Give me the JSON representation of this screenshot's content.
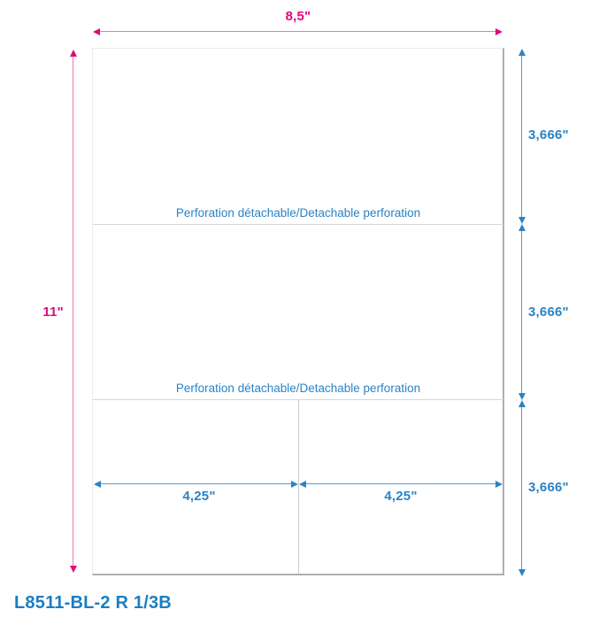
{
  "title": {
    "product_code": "L8511-BL-2 R 1/3B"
  },
  "sheet": {
    "width_label": "8,5\"",
    "height_label": "11\"",
    "perforation_labels": [
      "Perforation détachable/Detachable perforation",
      "Perforation détachable/Detachable perforation"
    ],
    "section_labels": [
      "3,666\"",
      "3,666\"",
      "3,666\""
    ],
    "half_width_labels": [
      "4,25\"",
      "4,25\""
    ]
  },
  "colors": {
    "dimension_pink": "#e0097a",
    "dimension_blue": "#2a83c5",
    "title_blue": "#1b7ec2",
    "sheet_edge_gray": "#aeaeae",
    "perforation_line_gray": "#d6d6d6",
    "background": "#ffffff"
  }
}
